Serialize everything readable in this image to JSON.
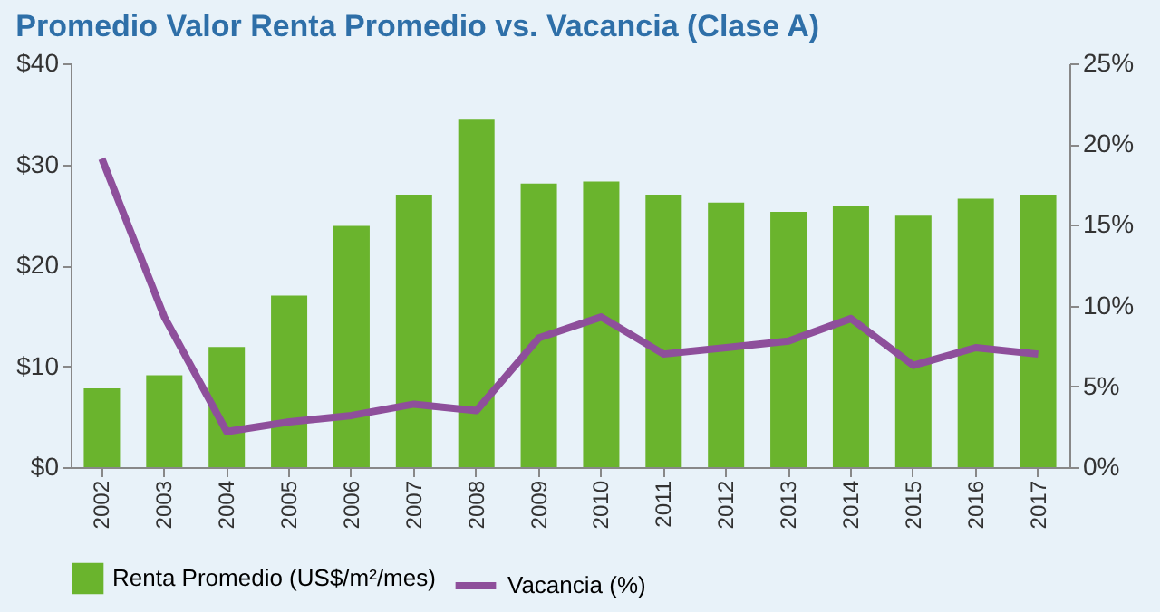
{
  "chart_data": {
    "type": "bar",
    "title": "Promedio Valor Renta Promedio vs. Vacancia (Clase A)",
    "categories": [
      "2002",
      "2003",
      "2004",
      "2005",
      "2006",
      "2007",
      "2008",
      "2009",
      "2010",
      "2011",
      "2012",
      "2013",
      "2014",
      "2015",
      "2016",
      "2017"
    ],
    "series": [
      {
        "name": "Renta Promedio (US$/m²/mes)",
        "color": "#6ab42d",
        "values": [
          7.8,
          9.1,
          11.9,
          17.0,
          23.9,
          27.0,
          34.5,
          28.1,
          28.3,
          27.0,
          26.2,
          25.3,
          25.9,
          24.9,
          26.6,
          27.0
        ]
      },
      {
        "name": "Vacancia (%)",
        "color": "#8e4f9b",
        "type": "line",
        "axis": "y2",
        "values": [
          19.1,
          9.3,
          2.2,
          2.8,
          3.2,
          3.9,
          3.5,
          8.0,
          9.3,
          7.0,
          7.4,
          7.8,
          9.2,
          6.3,
          7.4,
          7.0
        ]
      }
    ],
    "ylim": [
      0,
      40
    ],
    "yticks": [
      {
        "value": 0,
        "label": "$0"
      },
      {
        "value": 10,
        "label": "$10"
      },
      {
        "value": 20,
        "label": "$20"
      },
      {
        "value": 30,
        "label": "$30"
      },
      {
        "value": 40,
        "label": "$40"
      }
    ],
    "y2lim": [
      0,
      25
    ],
    "y2ticks": [
      {
        "value": 0,
        "label": "0%"
      },
      {
        "value": 5,
        "label": "5%"
      },
      {
        "value": 10,
        "label": "10%"
      },
      {
        "value": 15,
        "label": "15%"
      },
      {
        "value": 20,
        "label": "20%"
      },
      {
        "value": 25,
        "label": "25%"
      }
    ],
    "grid": false,
    "legend": "bottom",
    "marker": "none",
    "line_style": "solid"
  }
}
